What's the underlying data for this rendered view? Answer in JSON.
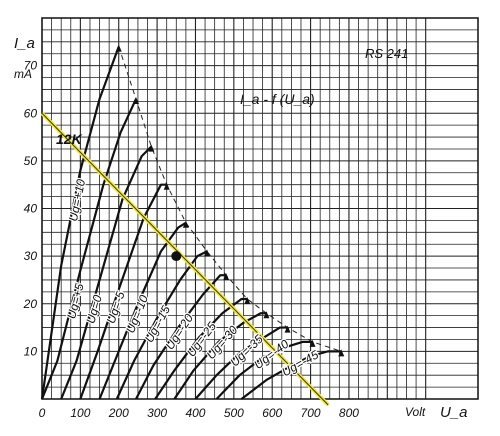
{
  "chart_data": {
    "type": "line",
    "title": "RS 241",
    "subtitle": "I_a - f (U_a)",
    "ylabel": "I_a",
    "yunit": "mA",
    "xunit": "Volt",
    "xlabel": "U_a",
    "xlim": [
      0,
      1000
    ],
    "ylim": [
      0,
      80
    ],
    "grid": true,
    "x_ticks": [
      0,
      100,
      200,
      300,
      400,
      500,
      600,
      700,
      800
    ],
    "y_ticks": [
      10,
      20,
      30,
      40,
      50,
      60,
      70
    ],
    "series": [
      {
        "name": "Ug=+10",
        "points": [
          [
            0,
            0
          ],
          [
            50,
            28
          ],
          [
            100,
            48
          ],
          [
            150,
            63
          ],
          [
            200,
            74
          ]
        ]
      },
      {
        "name": "Ug=+5",
        "points": [
          [
            0,
            0
          ],
          [
            40,
            8
          ],
          [
            100,
            27
          ],
          [
            160,
            45
          ],
          [
            205,
            56
          ],
          [
            245,
            63
          ]
        ]
      },
      {
        "name": "Ug=0",
        "points": [
          [
            50,
            0
          ],
          [
            90,
            8
          ],
          [
            150,
            25
          ],
          [
            210,
            42
          ],
          [
            260,
            51
          ],
          [
            285,
            53
          ]
        ]
      },
      {
        "name": "Ug=-5",
        "points": [
          [
            100,
            0
          ],
          [
            145,
            10
          ],
          [
            200,
            23
          ],
          [
            265,
            38
          ],
          [
            310,
            45
          ],
          [
            325,
            45
          ]
        ]
      },
      {
        "name": "Ug=-10",
        "points": [
          [
            150,
            0
          ],
          [
            195,
            9
          ],
          [
            250,
            20
          ],
          [
            310,
            31
          ],
          [
            355,
            36
          ],
          [
            375,
            37
          ]
        ]
      },
      {
        "name": "Ug=-15",
        "points": [
          [
            195,
            0
          ],
          [
            240,
            8
          ],
          [
            300,
            17
          ],
          [
            360,
            25
          ],
          [
            405,
            30
          ],
          [
            430,
            31
          ]
        ]
      },
      {
        "name": "Ug=-20",
        "points": [
          [
            245,
            0
          ],
          [
            290,
            7
          ],
          [
            355,
            15
          ],
          [
            420,
            22
          ],
          [
            465,
            26
          ],
          [
            480,
            26
          ]
        ]
      },
      {
        "name": "Ug=-25",
        "points": [
          [
            295,
            0
          ],
          [
            345,
            6
          ],
          [
            410,
            13
          ],
          [
            470,
            18
          ],
          [
            520,
            21
          ],
          [
            535,
            21
          ]
        ]
      },
      {
        "name": "Ug=-30",
        "points": [
          [
            345,
            0
          ],
          [
            395,
            6
          ],
          [
            460,
            12
          ],
          [
            525,
            16
          ],
          [
            570,
            18
          ],
          [
            585,
            18
          ]
        ]
      },
      {
        "name": "Ug=-35",
        "points": [
          [
            400,
            0
          ],
          [
            455,
            5
          ],
          [
            520,
            10
          ],
          [
            580,
            13
          ],
          [
            620,
            15
          ],
          [
            640,
            15
          ]
        ]
      },
      {
        "name": "Ug=-40",
        "points": [
          [
            455,
            0
          ],
          [
            515,
            5
          ],
          [
            580,
            9
          ],
          [
            640,
            11
          ],
          [
            680,
            12
          ],
          [
            705,
            12
          ]
        ]
      },
      {
        "name": "Ug=-45",
        "points": [
          [
            520,
            0
          ],
          [
            585,
            4
          ],
          [
            650,
            7
          ],
          [
            700,
            9
          ],
          [
            745,
            10
          ],
          [
            780,
            10
          ]
        ]
      }
    ],
    "curve_labels": [
      "Ug=+10",
      "Ug=+5",
      "Ug=0",
      "Ug=-5",
      "Ug=-10",
      "Ug=-15",
      "Ug=-20",
      "Ug=-25",
      "Ug=-30",
      "Ug=-35",
      "Ug=-40",
      "Ug=-45"
    ],
    "power_limit_curve": {
      "points": [
        [
          200,
          74
        ],
        [
          245,
          63
        ],
        [
          285,
          53
        ],
        [
          325,
          45
        ],
        [
          375,
          37
        ],
        [
          430,
          31
        ],
        [
          480,
          26
        ],
        [
          535,
          21
        ],
        [
          585,
          18
        ],
        [
          640,
          15
        ],
        [
          705,
          12
        ],
        [
          780,
          10
        ]
      ]
    },
    "load_line": {
      "label": "12K",
      "points": [
        [
          0,
          60
        ],
        [
          720,
          0
        ]
      ],
      "color": "#f2ea2a"
    },
    "operating_point": {
      "x": 350,
      "y": 30
    }
  }
}
